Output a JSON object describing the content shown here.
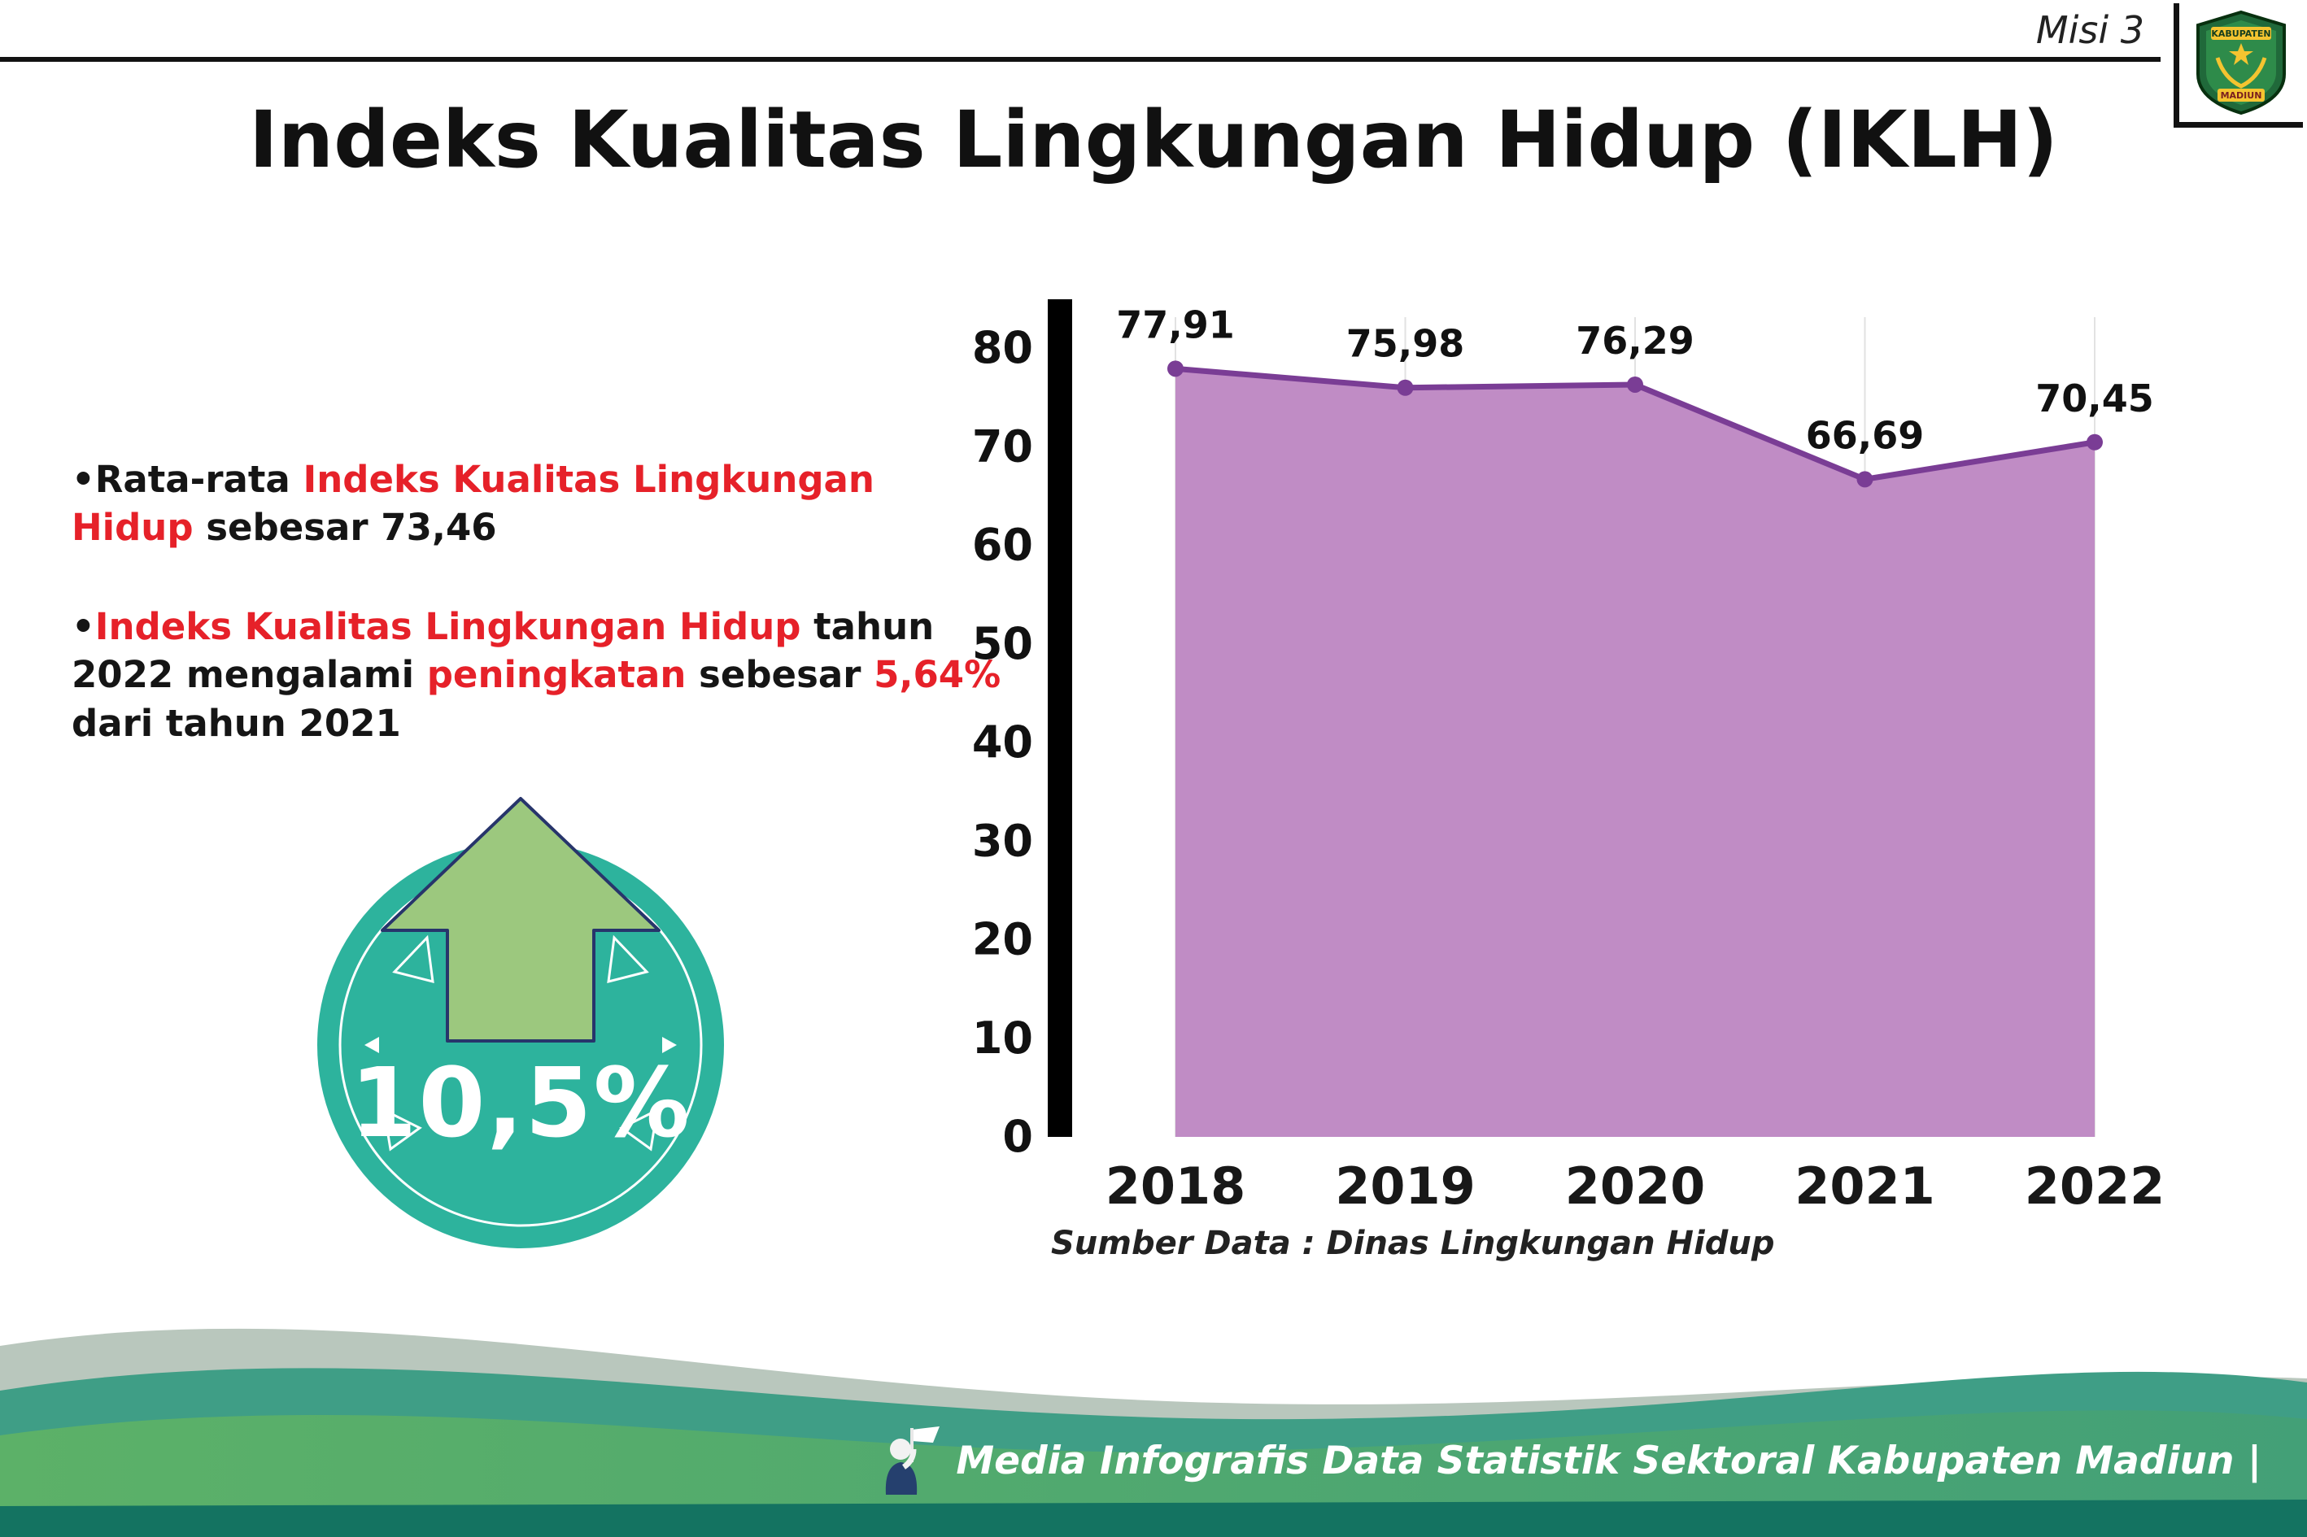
{
  "header": {
    "misi": "Misi 3",
    "title": "Indeks Kualitas Lingkungan Hidup (IKLH)",
    "logo": {
      "top": "KABUPATEN",
      "bottom": "MADIUN"
    }
  },
  "bullets": {
    "marker": "•",
    "b1": {
      "t1": "Rata-rata ",
      "red": "Indeks Kualitas Lingkungan Hidup",
      "t2": " sebesar 73,46"
    },
    "b2": {
      "red1": "Indeks Kualitas Lingkungan Hidup",
      "t1": " tahun 2022 mengalami ",
      "red2": "peningkatan",
      "t2": " sebesar ",
      "red3": "5,64%",
      "t3": " dari tahun 2021"
    }
  },
  "badge": {
    "value": "10,5%"
  },
  "chart_data": {
    "type": "area",
    "title": "",
    "categories": [
      "2018",
      "2019",
      "2020",
      "2021",
      "2022"
    ],
    "values": [
      77.91,
      75.98,
      76.29,
      66.69,
      70.45
    ],
    "value_labels": [
      "77,91",
      "75,98",
      "76,29",
      "66,69",
      "70,45"
    ],
    "ylim": [
      0,
      80
    ],
    "yticks": [
      0,
      10,
      20,
      30,
      40,
      50,
      60,
      70,
      80
    ],
    "grid": "vertical",
    "legend": "none",
    "colors": {
      "area": "#c08cc5",
      "line": "#7a3d95",
      "point": "#7a3d95"
    },
    "source": "Sumber Data : Dinas Lingkungan Hidup"
  },
  "footer": {
    "text": "Media Infografis Data Statistik Sektoral Kabupaten Madiun |"
  }
}
